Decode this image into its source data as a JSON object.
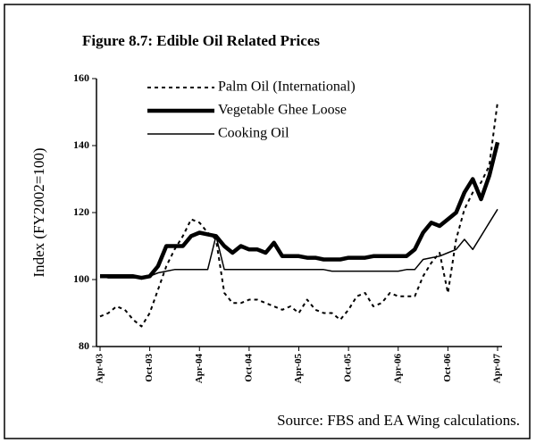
{
  "chart_data": {
    "type": "line",
    "title": "Figure 8.7: Edible Oil Related Prices",
    "y_label": "Index (FY2002=100)",
    "source": "Source: FBS and EA Wing calculations.",
    "categories": [
      "Apr-03",
      null,
      null,
      null,
      null,
      null,
      "Oct-03",
      null,
      null,
      null,
      null,
      null,
      "Apr-04",
      null,
      null,
      null,
      null,
      null,
      "Oct-04",
      null,
      null,
      null,
      null,
      null,
      "Apr-05",
      null,
      null,
      null,
      null,
      null,
      "Oct-05",
      null,
      null,
      null,
      null,
      null,
      "Apr-06",
      null,
      null,
      null,
      null,
      null,
      "Oct-06",
      null,
      null,
      null,
      null,
      null,
      "Apr-07"
    ],
    "series": [
      {
        "name": "Palm Oil (International)",
        "color": "#000000",
        "style": "dotted",
        "width": 2,
        "values": [
          89,
          90,
          92,
          91,
          88,
          86,
          90,
          97,
          104,
          109,
          113,
          118,
          117,
          114,
          112,
          96,
          93,
          93,
          94,
          94,
          93,
          92,
          91,
          92,
          90,
          94,
          91,
          90,
          90,
          88,
          91,
          95,
          96,
          92,
          93,
          96,
          95,
          95,
          95,
          101,
          105,
          108,
          96,
          112,
          121,
          126,
          129,
          134,
          153
        ]
      },
      {
        "name": "Vegetable Ghee Loose",
        "color": "#000000",
        "style": "solid",
        "width": 4.5,
        "values": [
          101,
          101,
          101,
          101,
          101,
          100.5,
          101,
          104,
          110,
          110,
          110,
          113,
          114,
          113.5,
          113,
          110,
          108,
          110,
          109,
          109,
          108,
          111,
          107,
          107,
          107,
          106.5,
          106.5,
          106,
          106,
          106,
          106.5,
          106.5,
          106.5,
          107,
          107,
          107,
          107,
          107,
          109,
          114,
          117,
          116,
          118,
          120,
          126,
          130,
          124,
          131,
          141
        ]
      },
      {
        "name": "Cooking Oil",
        "color": "#000000",
        "style": "solid",
        "width": 1.5,
        "values": [
          101,
          100.5,
          100.5,
          100.5,
          100.5,
          100.5,
          101,
          102,
          102.5,
          103,
          103,
          103,
          103,
          103,
          113,
          103,
          103,
          103,
          103,
          103,
          103,
          103,
          103,
          103,
          103,
          103,
          103,
          103,
          102.5,
          102.5,
          102.5,
          102.5,
          102.5,
          102.5,
          102.5,
          102.5,
          102.5,
          103,
          103,
          106,
          106.5,
          107,
          108,
          109,
          112,
          109,
          113,
          117,
          121
        ]
      }
    ],
    "ylim": [
      80,
      160
    ],
    "yticks": [
      80,
      100,
      120,
      140,
      160
    ],
    "grid": false,
    "legend": "upper left"
  }
}
